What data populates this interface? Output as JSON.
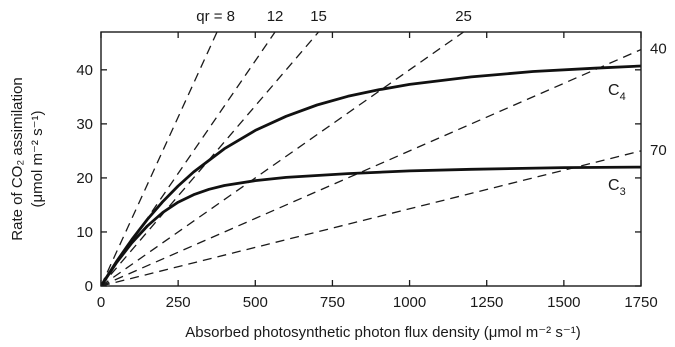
{
  "chart_data": {
    "type": "line",
    "title": "",
    "xlabel": "Absorbed photosynthetic photon flux density (μmol m⁻² s⁻¹)",
    "ylabel_line1": "Rate of CO₂ assimilation",
    "ylabel_line2": "(μmol m⁻² s⁻¹)",
    "xlim": [
      0,
      1750
    ],
    "ylim": [
      0,
      47
    ],
    "x_ticks": [
      0,
      250,
      500,
      750,
      1000,
      1250,
      1500,
      1750
    ],
    "y_ticks": [
      0,
      10,
      20,
      30,
      40
    ],
    "grid": false,
    "quantum_requirement_lines": [
      {
        "qr": 8,
        "label": "qr = 8"
      },
      {
        "qr": 12,
        "label": "12"
      },
      {
        "qr": 15,
        "label": "15"
      },
      {
        "qr": 25,
        "label": "25"
      },
      {
        "qr": 40,
        "label": "40"
      },
      {
        "qr": 70,
        "label": "70"
      }
    ],
    "series": [
      {
        "name": "C4",
        "name_base": "C",
        "name_sub": "4",
        "points": [
          [
            0,
            0
          ],
          [
            50,
            4.5
          ],
          [
            100,
            8.6
          ],
          [
            150,
            12.3
          ],
          [
            200,
            15.6
          ],
          [
            250,
            18.5
          ],
          [
            300,
            21.1
          ],
          [
            400,
            25.4
          ],
          [
            500,
            28.8
          ],
          [
            600,
            31.4
          ],
          [
            700,
            33.5
          ],
          [
            800,
            35.1
          ],
          [
            900,
            36.3
          ],
          [
            1000,
            37.3
          ],
          [
            1200,
            38.7
          ],
          [
            1400,
            39.7
          ],
          [
            1600,
            40.3
          ],
          [
            1750,
            40.7
          ]
        ]
      },
      {
        "name": "C3",
        "name_base": "C",
        "name_sub": "3",
        "points": [
          [
            0,
            0
          ],
          [
            50,
            4.3
          ],
          [
            100,
            8.0
          ],
          [
            150,
            11.1
          ],
          [
            200,
            13.6
          ],
          [
            250,
            15.5
          ],
          [
            300,
            16.9
          ],
          [
            350,
            17.9
          ],
          [
            400,
            18.6
          ],
          [
            500,
            19.5
          ],
          [
            600,
            20.1
          ],
          [
            800,
            20.8
          ],
          [
            1000,
            21.3
          ],
          [
            1200,
            21.6
          ],
          [
            1500,
            21.9
          ],
          [
            1750,
            22.0
          ]
        ]
      }
    ]
  }
}
